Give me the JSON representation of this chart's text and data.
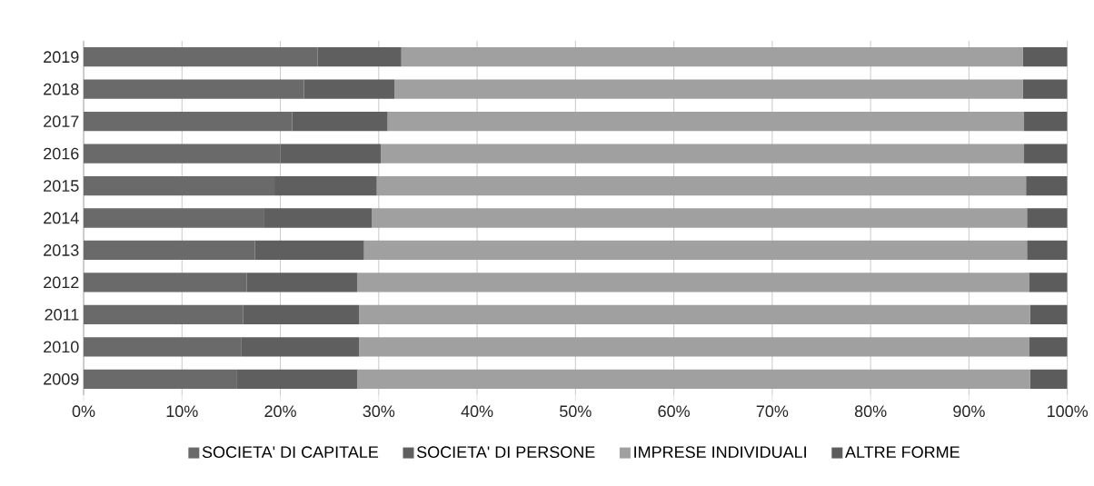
{
  "chart_data": {
    "type": "bar",
    "orientation": "horizontal",
    "stacked": true,
    "categories": [
      "2019",
      "2018",
      "2017",
      "2016",
      "2015",
      "2014",
      "2013",
      "2012",
      "2011",
      "2010",
      "2009"
    ],
    "series": [
      {
        "name": "SOCIETA' DI CAPITALE",
        "color": "#6a6a6a",
        "values": [
          23.8,
          22.4,
          21.2,
          20.0,
          19.4,
          18.3,
          17.4,
          16.6,
          16.2,
          16.0,
          15.6
        ]
      },
      {
        "name": "SOCIETA' DI PERSONE",
        "color": "#5f5f5f",
        "values": [
          8.5,
          9.2,
          9.7,
          10.2,
          10.4,
          11.0,
          11.1,
          11.2,
          11.8,
          12.0,
          12.2
        ]
      },
      {
        "name": "IMPRESE INDIVIDUALI",
        "color": "#a0a0a0",
        "values": [
          63.2,
          63.9,
          64.7,
          65.4,
          66.0,
          66.6,
          67.4,
          68.3,
          68.2,
          68.1,
          68.4
        ]
      },
      {
        "name": "ALTRE FORME",
        "color": "#5c5c5c",
        "values": [
          4.5,
          4.5,
          4.4,
          4.4,
          4.2,
          4.1,
          4.1,
          3.9,
          3.8,
          3.9,
          3.8
        ]
      }
    ],
    "xlim": [
      0,
      100
    ],
    "xticks": [
      {
        "value": 0,
        "label": "0%"
      },
      {
        "value": 10,
        "label": "10%"
      },
      {
        "value": 20,
        "label": "20%"
      },
      {
        "value": 30,
        "label": "30%"
      },
      {
        "value": 40,
        "label": "40%"
      },
      {
        "value": 50,
        "label": "50%"
      },
      {
        "value": 60,
        "label": "60%"
      },
      {
        "value": 70,
        "label": "70%"
      },
      {
        "value": 80,
        "label": "80%"
      },
      {
        "value": 90,
        "label": "90%"
      },
      {
        "value": 100,
        "label": "100%"
      }
    ],
    "grid": "x",
    "legend": "bottom"
  }
}
